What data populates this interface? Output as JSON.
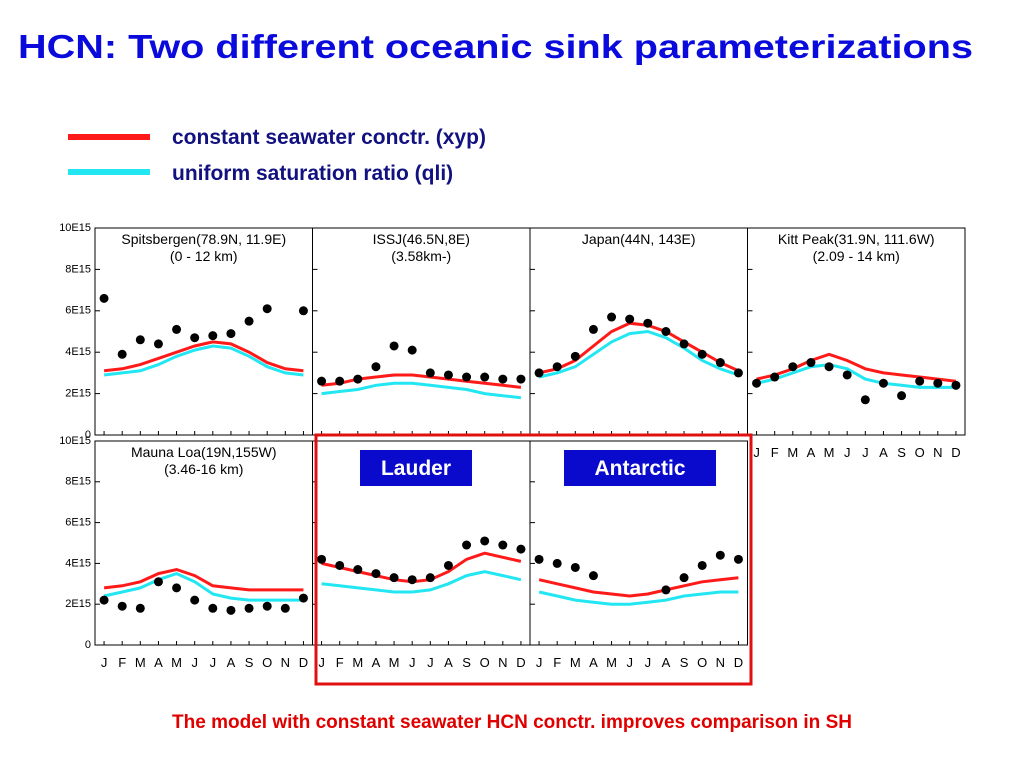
{
  "title": "HCN: Two different oceanic sink parameterizations",
  "legend": [
    {
      "label": "constant seawater conctr. (xyp)",
      "color": "#ff1a1a"
    },
    {
      "label": "uniform saturation ratio (qli)",
      "color": "#22e6f2"
    }
  ],
  "callouts": [
    "Lauder",
    "Antarctic"
  ],
  "footer": "The model with constant seawater HCN conctr. improves comparison in SH",
  "chart_data": [
    {
      "type": "line",
      "title": "Spitsbergen(78.9N, 11.9E)",
      "subtitle": "(0 - 12 km)",
      "categories": [
        "J",
        "F",
        "M",
        "A",
        "M",
        "J",
        "J",
        "A",
        "S",
        "O",
        "N",
        "D"
      ],
      "ylim": [
        0,
        1e+16
      ],
      "yticks": [
        {
          "value": 0,
          "label": "0"
        },
        {
          "value": 2000000000000000.0,
          "label": "2E15"
        },
        {
          "value": 4000000000000000.0,
          "label": "4E15"
        },
        {
          "value": 6000000000000000.0,
          "label": "6E15"
        },
        {
          "value": 8000000000000000.0,
          "label": "8E15"
        },
        {
          "value": 1e+16,
          "label": "10E15"
        }
      ],
      "series": [
        {
          "color": "#ff1a1a",
          "values": [
            3100000000000000.0,
            3200000000000000.0,
            3400000000000000.0,
            3700000000000000.0,
            4000000000000000.0,
            4300000000000000.0,
            4500000000000000.0,
            4400000000000000.0,
            4000000000000000.0,
            3500000000000000.0,
            3200000000000000.0,
            3100000000000000.0
          ]
        },
        {
          "color": "#22e6f2",
          "values": [
            2900000000000000.0,
            3000000000000000.0,
            3100000000000000.0,
            3400000000000000.0,
            3800000000000000.0,
            4100000000000000.0,
            4300000000000000.0,
            4200000000000000.0,
            3800000000000000.0,
            3300000000000000.0,
            3000000000000000.0,
            2900000000000000.0
          ]
        },
        {
          "color": "#000000",
          "marker": "dot",
          "values": [
            6600000000000000.0,
            3900000000000000.0,
            4600000000000000.0,
            4400000000000000.0,
            5100000000000000.0,
            4700000000000000.0,
            4800000000000000.0,
            4900000000000000.0,
            5500000000000000.0,
            6100000000000000.0,
            null,
            6000000000000000.0
          ]
        }
      ]
    },
    {
      "type": "line",
      "title": "ISSJ(46.5N,8E)",
      "subtitle": "(3.58km-)",
      "categories": [
        "J",
        "F",
        "M",
        "A",
        "M",
        "J",
        "J",
        "A",
        "S",
        "O",
        "N",
        "D"
      ],
      "ylim": [
        0,
        1e+16
      ],
      "yticks": [
        {
          "value": 0,
          "label": "0"
        },
        {
          "value": 2000000000000000.0,
          "label": "2E15"
        },
        {
          "value": 4000000000000000.0,
          "label": "4E15"
        },
        {
          "value": 6000000000000000.0,
          "label": "6E15"
        },
        {
          "value": 8000000000000000.0,
          "label": "8E15"
        },
        {
          "value": 1e+16,
          "label": "10E15"
        }
      ],
      "series": [
        {
          "color": "#ff1a1a",
          "values": [
            2400000000000000.0,
            2500000000000000.0,
            2700000000000000.0,
            2800000000000000.0,
            2900000000000000.0,
            2900000000000000.0,
            2800000000000000.0,
            2700000000000000.0,
            2600000000000000.0,
            2500000000000000.0,
            2400000000000000.0,
            2300000000000000.0
          ]
        },
        {
          "color": "#22e6f2",
          "values": [
            2000000000000000.0,
            2100000000000000.0,
            2200000000000000.0,
            2400000000000000.0,
            2500000000000000.0,
            2500000000000000.0,
            2400000000000000.0,
            2300000000000000.0,
            2200000000000000.0,
            2000000000000000.0,
            1900000000000000.0,
            1800000000000000.0
          ]
        },
        {
          "color": "#000000",
          "marker": "dot",
          "values": [
            2600000000000000.0,
            2600000000000000.0,
            2700000000000000.0,
            3300000000000000.0,
            4300000000000000.0,
            4100000000000000.0,
            3000000000000000.0,
            2900000000000000.0,
            2800000000000000.0,
            2800000000000000.0,
            2700000000000000.0,
            2700000000000000.0
          ]
        }
      ]
    },
    {
      "type": "line",
      "title": "Japan(44N, 143E)",
      "categories": [
        "J",
        "F",
        "M",
        "A",
        "M",
        "J",
        "J",
        "A",
        "S",
        "O",
        "N",
        "D"
      ],
      "ylim": [
        0,
        1e+16
      ],
      "yticks": [
        {
          "value": 0,
          "label": "0"
        },
        {
          "value": 2000000000000000.0,
          "label": "2E15"
        },
        {
          "value": 4000000000000000.0,
          "label": "4E15"
        },
        {
          "value": 6000000000000000.0,
          "label": "6E15"
        },
        {
          "value": 8000000000000000.0,
          "label": "8E15"
        },
        {
          "value": 1e+16,
          "label": "10E15"
        }
      ],
      "series": [
        {
          "color": "#ff1a1a",
          "values": [
            3000000000000000.0,
            3200000000000000.0,
            3600000000000000.0,
            4300000000000000.0,
            5000000000000000.0,
            5400000000000000.0,
            5300000000000000.0,
            5000000000000000.0,
            4500000000000000.0,
            4000000000000000.0,
            3500000000000000.0,
            3100000000000000.0
          ]
        },
        {
          "color": "#22e6f2",
          "values": [
            2800000000000000.0,
            3000000000000000.0,
            3300000000000000.0,
            3900000000000000.0,
            4500000000000000.0,
            4900000000000000.0,
            5000000000000000.0,
            4700000000000000.0,
            4200000000000000.0,
            3600000000000000.0,
            3200000000000000.0,
            2900000000000000.0
          ]
        },
        {
          "color": "#000000",
          "marker": "dot",
          "values": [
            3000000000000000.0,
            3300000000000000.0,
            3800000000000000.0,
            5100000000000000.0,
            5700000000000000.0,
            5600000000000000.0,
            5400000000000000.0,
            5000000000000000.0,
            4400000000000000.0,
            3900000000000000.0,
            3500000000000000.0,
            3000000000000000.0
          ]
        }
      ]
    },
    {
      "type": "line",
      "title": "Kitt Peak(31.9N, 111.6W)",
      "subtitle": "(2.09 - 14 km)",
      "categories": [
        "J",
        "F",
        "M",
        "A",
        "M",
        "J",
        "J",
        "A",
        "S",
        "O",
        "N",
        "D"
      ],
      "ylim": [
        0,
        1e+16
      ],
      "yticks": [
        {
          "value": 0,
          "label": "0"
        },
        {
          "value": 2000000000000000.0,
          "label": "2E15"
        },
        {
          "value": 4000000000000000.0,
          "label": "4E15"
        },
        {
          "value": 6000000000000000.0,
          "label": "6E15"
        },
        {
          "value": 8000000000000000.0,
          "label": "8E15"
        },
        {
          "value": 1e+16,
          "label": "10E15"
        }
      ],
      "series": [
        {
          "color": "#ff1a1a",
          "values": [
            2700000000000000.0,
            2900000000000000.0,
            3200000000000000.0,
            3600000000000000.0,
            3900000000000000.0,
            3600000000000000.0,
            3200000000000000.0,
            3000000000000000.0,
            2900000000000000.0,
            2800000000000000.0,
            2700000000000000.0,
            2600000000000000.0
          ]
        },
        {
          "color": "#22e6f2",
          "values": [
            2500000000000000.0,
            2700000000000000.0,
            3000000000000000.0,
            3300000000000000.0,
            3400000000000000.0,
            3200000000000000.0,
            2700000000000000.0,
            2500000000000000.0,
            2400000000000000.0,
            2300000000000000.0,
            2300000000000000.0,
            2300000000000000.0
          ]
        },
        {
          "color": "#000000",
          "marker": "dot",
          "values": [
            2500000000000000.0,
            2800000000000000.0,
            3300000000000000.0,
            3500000000000000.0,
            3300000000000000.0,
            2900000000000000.0,
            1700000000000000.0,
            2500000000000000.0,
            1900000000000000.0,
            2600000000000000.0,
            2500000000000000.0,
            2400000000000000.0
          ]
        }
      ]
    },
    {
      "type": "line",
      "title": "Mauna Loa(19N,155W)",
      "subtitle": "(3.46-16 km)",
      "categories": [
        "J",
        "F",
        "M",
        "A",
        "M",
        "J",
        "J",
        "A",
        "S",
        "O",
        "N",
        "D"
      ],
      "ylim": [
        0,
        1e+16
      ],
      "yticks": [
        {
          "value": 0,
          "label": "0"
        },
        {
          "value": 2000000000000000.0,
          "label": "2E15"
        },
        {
          "value": 4000000000000000.0,
          "label": "4E15"
        },
        {
          "value": 6000000000000000.0,
          "label": "6E15"
        },
        {
          "value": 8000000000000000.0,
          "label": "8E15"
        },
        {
          "value": 1e+16,
          "label": "10E15"
        }
      ],
      "series": [
        {
          "color": "#ff1a1a",
          "values": [
            2800000000000000.0,
            2900000000000000.0,
            3100000000000000.0,
            3500000000000000.0,
            3700000000000000.0,
            3400000000000000.0,
            2900000000000000.0,
            2800000000000000.0,
            2700000000000000.0,
            2700000000000000.0,
            2700000000000000.0,
            2700000000000000.0
          ]
        },
        {
          "color": "#22e6f2",
          "values": [
            2400000000000000.0,
            2600000000000000.0,
            2800000000000000.0,
            3200000000000000.0,
            3500000000000000.0,
            3100000000000000.0,
            2500000000000000.0,
            2300000000000000.0,
            2200000000000000.0,
            2200000000000000.0,
            2200000000000000.0,
            2200000000000000.0
          ]
        },
        {
          "color": "#000000",
          "marker": "dot",
          "values": [
            2200000000000000.0,
            1900000000000000.0,
            1800000000000000.0,
            3100000000000000.0,
            2800000000000000.0,
            2200000000000000.0,
            1800000000000000.0,
            1700000000000000.0,
            1800000000000000.0,
            1900000000000000.0,
            1800000000000000.0,
            2300000000000000.0
          ]
        }
      ]
    },
    {
      "type": "line",
      "categories": [
        "J",
        "F",
        "M",
        "A",
        "M",
        "J",
        "J",
        "A",
        "S",
        "O",
        "N",
        "D"
      ],
      "ylim": [
        0,
        1e+16
      ],
      "yticks": [
        {
          "value": 0,
          "label": "0"
        },
        {
          "value": 2000000000000000.0,
          "label": "2E15"
        },
        {
          "value": 4000000000000000.0,
          "label": "4E15"
        },
        {
          "value": 6000000000000000.0,
          "label": "6E15"
        },
        {
          "value": 8000000000000000.0,
          "label": "8E15"
        },
        {
          "value": 1e+16,
          "label": "10E15"
        }
      ],
      "series": [
        {
          "color": "#ff1a1a",
          "values": [
            4000000000000000.0,
            3800000000000000.0,
            3600000000000000.0,
            3400000000000000.0,
            3200000000000000.0,
            3100000000000000.0,
            3200000000000000.0,
            3600000000000000.0,
            4200000000000000.0,
            4500000000000000.0,
            4300000000000000.0,
            4100000000000000.0
          ]
        },
        {
          "color": "#22e6f2",
          "values": [
            3000000000000000.0,
            2900000000000000.0,
            2800000000000000.0,
            2700000000000000.0,
            2600000000000000.0,
            2600000000000000.0,
            2700000000000000.0,
            3000000000000000.0,
            3400000000000000.0,
            3600000000000000.0,
            3400000000000000.0,
            3200000000000000.0
          ]
        },
        {
          "color": "#000000",
          "marker": "dot",
          "values": [
            4200000000000000.0,
            3900000000000000.0,
            3700000000000000.0,
            3500000000000000.0,
            3300000000000000.0,
            3200000000000000.0,
            3300000000000000.0,
            3900000000000000.0,
            4900000000000000.0,
            5100000000000000.0,
            4900000000000000.0,
            4700000000000000.0
          ]
        }
      ]
    },
    {
      "type": "line",
      "categories": [
        "J",
        "F",
        "M",
        "A",
        "M",
        "J",
        "J",
        "A",
        "S",
        "O",
        "N",
        "D"
      ],
      "ylim": [
        0,
        1e+16
      ],
      "yticks": [
        {
          "value": 0,
          "label": "0"
        },
        {
          "value": 2000000000000000.0,
          "label": "2E15"
        },
        {
          "value": 4000000000000000.0,
          "label": "4E15"
        },
        {
          "value": 6000000000000000.0,
          "label": "6E15"
        },
        {
          "value": 8000000000000000.0,
          "label": "8E15"
        },
        {
          "value": 1e+16,
          "label": "10E15"
        }
      ],
      "series": [
        {
          "color": "#ff1a1a",
          "values": [
            3200000000000000.0,
            3000000000000000.0,
            2800000000000000.0,
            2600000000000000.0,
            2500000000000000.0,
            2400000000000000.0,
            2500000000000000.0,
            2700000000000000.0,
            2900000000000000.0,
            3100000000000000.0,
            3200000000000000.0,
            3300000000000000.0
          ]
        },
        {
          "color": "#22e6f2",
          "values": [
            2600000000000000.0,
            2400000000000000.0,
            2200000000000000.0,
            2100000000000000.0,
            2000000000000000.0,
            2000000000000000.0,
            2100000000000000.0,
            2200000000000000.0,
            2400000000000000.0,
            2500000000000000.0,
            2600000000000000.0,
            2600000000000000.0
          ]
        },
        {
          "color": "#000000",
          "marker": "dot",
          "values": [
            4200000000000000.0,
            4000000000000000.0,
            3800000000000000.0,
            3400000000000000.0,
            null,
            null,
            null,
            2700000000000000.0,
            3300000000000000.0,
            3900000000000000.0,
            4400000000000000.0,
            4200000000000000.0
          ]
        }
      ]
    }
  ]
}
